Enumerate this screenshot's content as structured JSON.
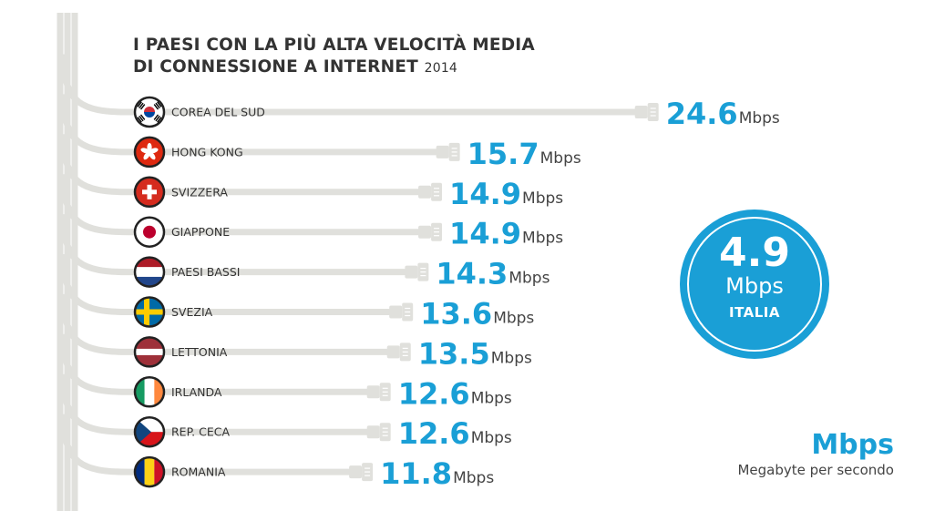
{
  "title": {
    "line1": "I PAESI CON LA PIÙ ALTA VELOCITÀ MEDIA",
    "line2": "DI CONNESSIONE A INTERNET",
    "year": "2014"
  },
  "highlight": {
    "value": "4.9",
    "unit": "Mbps",
    "country": "ITALIA"
  },
  "unit_legend": {
    "abbr": "Mbps",
    "full": "Megabyte per secondo"
  },
  "colors": {
    "accent": "#1a9fd6",
    "cable": "#e0e0dc",
    "text": "#333333"
  },
  "chart_data": {
    "type": "bar",
    "unit": "Mbps",
    "categories": [
      "COREA DEL SUD",
      "HONG KONG",
      "SVIZZERA",
      "GIAPPONE",
      "PAESI BASSI",
      "SVEZIA",
      "LETTONIA",
      "IRLANDA",
      "REP. CECA",
      "ROMANIA"
    ],
    "values": [
      24.6,
      15.7,
      14.9,
      14.9,
      14.3,
      13.6,
      13.5,
      12.6,
      12.6,
      11.8
    ],
    "flags": [
      "south-korea",
      "hong-kong",
      "switzerland",
      "japan",
      "netherlands",
      "sweden",
      "latvia",
      "ireland",
      "czech-republic",
      "romania"
    ]
  }
}
